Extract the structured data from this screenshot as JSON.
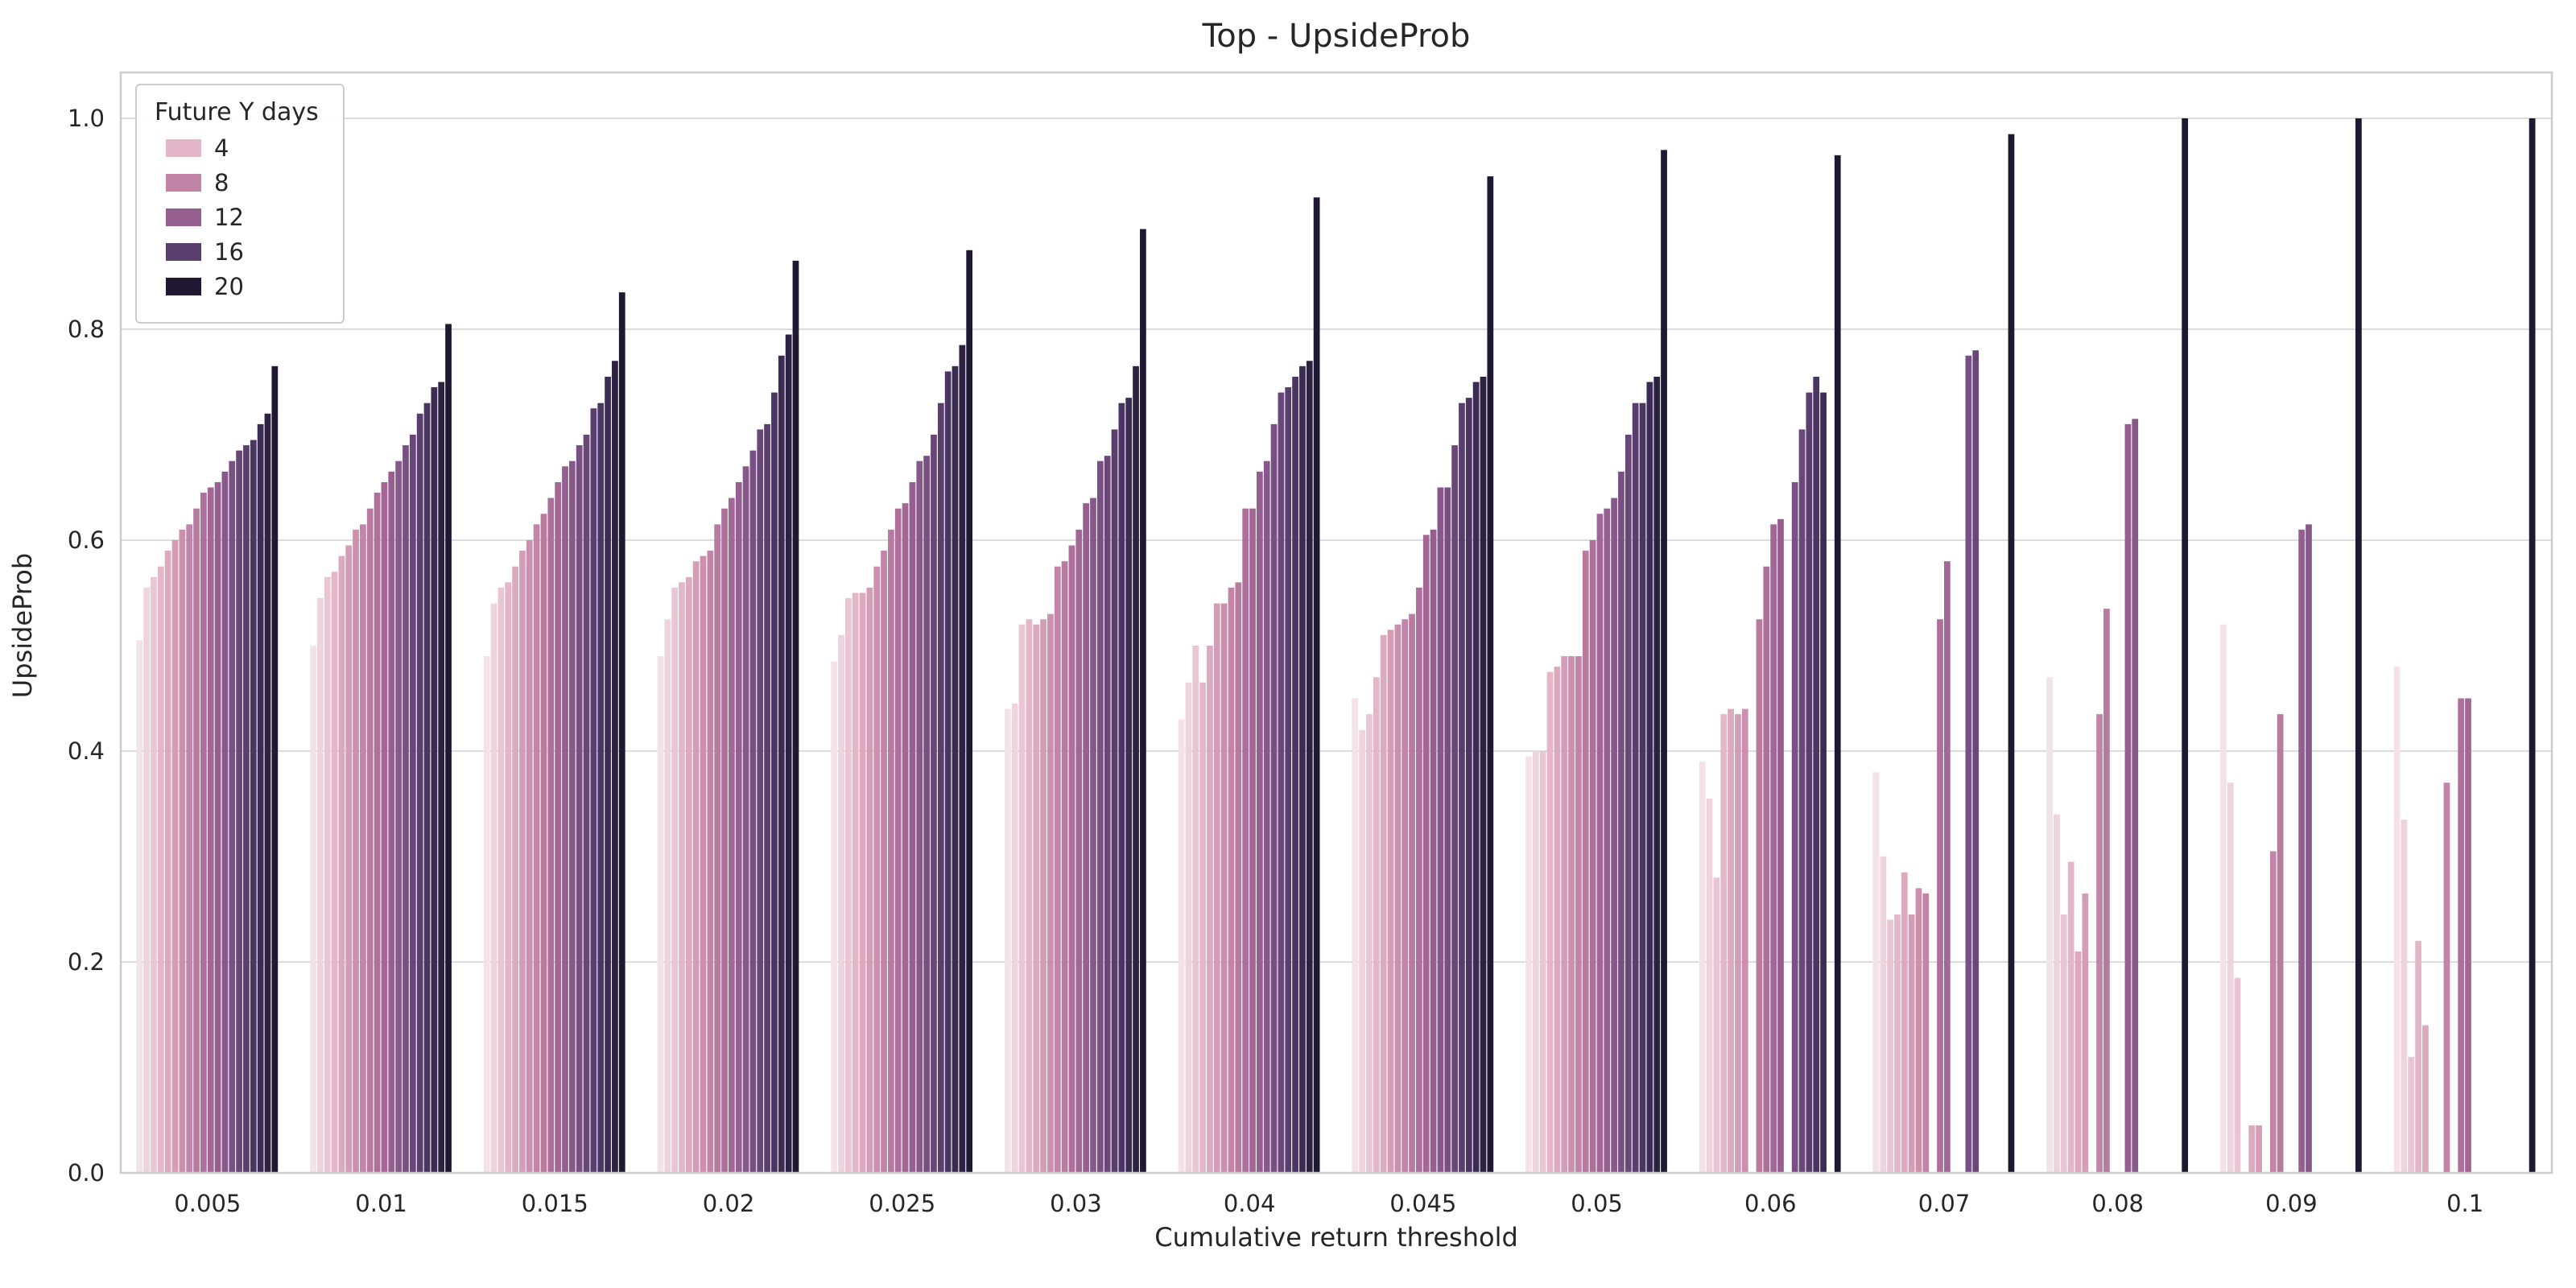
{
  "chart_data": {
    "type": "bar",
    "title": "Top - UpsideProb",
    "xlabel": "Cumulative return threshold",
    "ylabel": "UpsideProb",
    "ylim": [
      0.0,
      1.045
    ],
    "grid": "horizontal",
    "legend_position": "upper-left",
    "yticks": [
      "0.0",
      "0.2",
      "0.4",
      "0.6",
      "0.8",
      "1.0"
    ],
    "ytick_values": [
      0.0,
      0.2,
      0.4,
      0.6,
      0.8,
      1.0
    ],
    "categories": [
      "0.005",
      "0.01",
      "0.015",
      "0.02",
      "0.025",
      "0.03",
      "0.04",
      "0.045",
      "0.05",
      "0.06",
      "0.07",
      "0.08",
      "0.09",
      "0.1"
    ],
    "hue": {
      "title": "Future Y days",
      "levels": [
        1,
        2,
        3,
        4,
        5,
        6,
        7,
        8,
        9,
        10,
        11,
        12,
        13,
        14,
        15,
        16,
        17,
        18,
        19,
        20
      ],
      "legend_levels_shown": [
        "4",
        "8",
        "12",
        "16",
        "20"
      ],
      "legend_level_indices": [
        3,
        7,
        11,
        15,
        19
      ]
    },
    "groups": [
      {
        "threshold": "0.005",
        "values": [
          0.505,
          0.555,
          0.565,
          0.575,
          0.59,
          0.6,
          0.61,
          0.615,
          0.63,
          0.645,
          0.65,
          0.655,
          0.665,
          0.675,
          0.685,
          0.69,
          0.695,
          0.71,
          0.72,
          0.765
        ]
      },
      {
        "threshold": "0.01",
        "values": [
          0.5,
          0.545,
          0.565,
          0.57,
          0.585,
          0.595,
          0.61,
          0.615,
          0.63,
          0.645,
          0.655,
          0.665,
          0.675,
          0.69,
          0.7,
          0.72,
          0.73,
          0.745,
          0.75,
          0.805
        ]
      },
      {
        "threshold": "0.015",
        "values": [
          0.49,
          0.54,
          0.555,
          0.56,
          0.575,
          0.59,
          0.6,
          0.615,
          0.625,
          0.64,
          0.655,
          0.67,
          0.675,
          0.69,
          0.7,
          0.725,
          0.73,
          0.755,
          0.77,
          0.835
        ]
      },
      {
        "threshold": "0.02",
        "values": [
          0.49,
          0.525,
          0.555,
          0.56,
          0.565,
          0.58,
          0.585,
          0.59,
          0.615,
          0.63,
          0.64,
          0.655,
          0.67,
          0.685,
          0.705,
          0.71,
          0.74,
          0.775,
          0.795,
          0.865
        ]
      },
      {
        "threshold": "0.025",
        "values": [
          0.485,
          0.51,
          0.545,
          0.55,
          0.55,
          0.555,
          0.575,
          0.59,
          0.61,
          0.63,
          0.635,
          0.655,
          0.675,
          0.68,
          0.7,
          0.73,
          0.76,
          0.765,
          0.785,
          0.875
        ]
      },
      {
        "threshold": "0.03",
        "values": [
          0.44,
          0.445,
          0.52,
          0.525,
          0.52,
          0.525,
          0.53,
          0.575,
          0.58,
          0.595,
          0.61,
          0.635,
          0.64,
          0.675,
          0.68,
          0.705,
          0.73,
          0.735,
          0.765,
          0.895
        ]
      },
      {
        "threshold": "0.04",
        "values": [
          0.43,
          0.465,
          0.5,
          0.465,
          0.5,
          0.54,
          0.54,
          0.555,
          0.56,
          0.63,
          0.63,
          0.665,
          0.675,
          0.71,
          0.74,
          0.745,
          0.755,
          0.765,
          0.77,
          0.925
        ]
      },
      {
        "threshold": "0.045",
        "values": [
          0.45,
          0.42,
          0.435,
          0.47,
          0.51,
          0.515,
          0.52,
          0.525,
          0.53,
          0.555,
          0.605,
          0.61,
          0.65,
          0.65,
          0.69,
          0.73,
          0.735,
          0.75,
          0.755,
          0.945
        ]
      },
      {
        "threshold": "0.05",
        "values": [
          0.395,
          0.4,
          0.4,
          0.475,
          0.48,
          0.49,
          0.49,
          0.49,
          0.59,
          0.6,
          0.625,
          0.63,
          0.64,
          0.665,
          0.7,
          0.73,
          0.73,
          0.75,
          0.755,
          0.97
        ]
      },
      {
        "threshold": "0.06",
        "values": [
          0.39,
          0.355,
          0.28,
          0.435,
          0.44,
          0.435,
          0.44,
          null,
          0.525,
          0.575,
          0.615,
          0.62,
          null,
          0.655,
          0.705,
          0.74,
          0.755,
          0.74,
          null,
          0.965
        ]
      },
      {
        "threshold": "0.07",
        "values": [
          0.38,
          0.3,
          0.24,
          0.245,
          0.285,
          0.245,
          0.27,
          0.265,
          null,
          0.525,
          0.58,
          null,
          null,
          0.775,
          0.78,
          null,
          null,
          null,
          null,
          0.985
        ]
      },
      {
        "threshold": "0.08",
        "values": [
          0.47,
          0.34,
          0.245,
          0.295,
          0.21,
          0.265,
          null,
          0.435,
          0.535,
          null,
          null,
          0.71,
          0.715,
          null,
          null,
          null,
          null,
          null,
          null,
          1.0
        ]
      },
      {
        "threshold": "0.09",
        "values": [
          0.52,
          0.37,
          0.185,
          null,
          0.045,
          0.045,
          null,
          0.305,
          0.435,
          null,
          null,
          0.61,
          0.615,
          null,
          null,
          null,
          null,
          null,
          null,
          1.0
        ]
      },
      {
        "threshold": "0.1",
        "values": [
          0.48,
          0.335,
          0.11,
          0.22,
          0.14,
          null,
          null,
          0.37,
          null,
          0.45,
          0.45,
          null,
          null,
          null,
          null,
          null,
          null,
          null,
          null,
          1.0
        ]
      }
    ],
    "colors": {
      "palette_anchors": [
        "#f3e2e8",
        "#e2b5c6",
        "#c98cab",
        "#a96b97",
        "#7e5386",
        "#4c3766",
        "#201833"
      ],
      "gridline": "#dcdcdc",
      "spine": "#cccccc",
      "text": "#262626",
      "background": "#ffffff"
    }
  }
}
